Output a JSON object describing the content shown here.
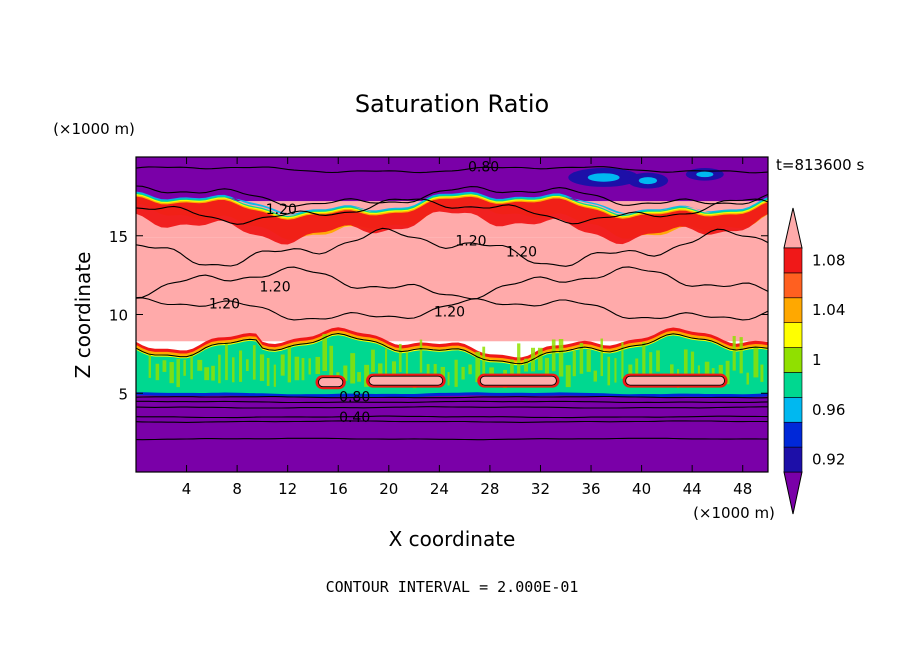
{
  "chart_data": {
    "type": "heatmap",
    "title": "Saturation Ratio",
    "time_label": "t=813600 s",
    "xlabel": "X coordinate",
    "ylabel": "Z coordinate",
    "x_unit": "(×1000 m)",
    "y_unit": "(×1000 m)",
    "footer": "CONTOUR INTERVAL = 2.000E-01",
    "xlim": [
      0,
      50
    ],
    "ylim": [
      0,
      20
    ],
    "x_ticks": [
      4,
      8,
      12,
      16,
      20,
      24,
      28,
      32,
      36,
      40,
      44,
      48
    ],
    "y_ticks": [
      5,
      10,
      15
    ],
    "colorbar": {
      "labels": [
        "0.92",
        "0.96",
        "1",
        "1.04",
        "1.08"
      ],
      "levels": [
        0.9,
        0.92,
        0.94,
        0.96,
        0.98,
        1.0,
        1.02,
        1.04,
        1.06,
        1.08,
        1.1
      ],
      "colors": [
        "#7a00a8",
        "#1d0fa8",
        "#0028d8",
        "#00b8f0",
        "#00d890",
        "#90e000",
        "#ffff00",
        "#ffa800",
        "#ff6020",
        "#f01818",
        "#ffaaaa"
      ]
    },
    "contour_labels": [
      {
        "text": "0.80",
        "x": 27.5,
        "y": 19.2
      },
      {
        "text": "1.20",
        "x": 11.5,
        "y": 16.5
      },
      {
        "text": "1.20",
        "x": 26.5,
        "y": 14.5
      },
      {
        "text": "1.20",
        "x": 30.5,
        "y": 13.8
      },
      {
        "text": "1.20",
        "x": 7.0,
        "y": 10.5
      },
      {
        "text": "1.20",
        "x": 11.0,
        "y": 11.6
      },
      {
        "text": "1.20",
        "x": 24.8,
        "y": 10.0
      },
      {
        "text": "0.80",
        "x": 17.3,
        "y": 4.6
      },
      {
        "text": "0.40",
        "x": 17.3,
        "y": 3.3
      }
    ],
    "bands": [
      {
        "name": "lower-dry",
        "y0": 0,
        "y1": 4.9,
        "color": "#7a00a8"
      },
      {
        "name": "supersaturated",
        "y0": 8.3,
        "y1": 14.9,
        "color": "#ffaaaa"
      },
      {
        "name": "upper-mixed",
        "y0": 14.9,
        "y1": 17.2,
        "color": "#ffaaaa"
      },
      {
        "name": "upper-dry",
        "y0": 17.2,
        "y1": 20,
        "color": "#7a00a8"
      }
    ],
    "cloud_layer": {
      "y0": 4.9,
      "y1": 8.3,
      "color": "#00d890"
    },
    "lenses": [
      {
        "x0": 14.2,
        "x1": 16.6,
        "y": 5.7
      },
      {
        "x0": 18.2,
        "x1": 24.5,
        "y": 5.8
      },
      {
        "x0": 27.0,
        "x1": 33.5,
        "y": 5.8
      },
      {
        "x0": 38.5,
        "x1": 46.8,
        "y": 5.8
      }
    ]
  }
}
